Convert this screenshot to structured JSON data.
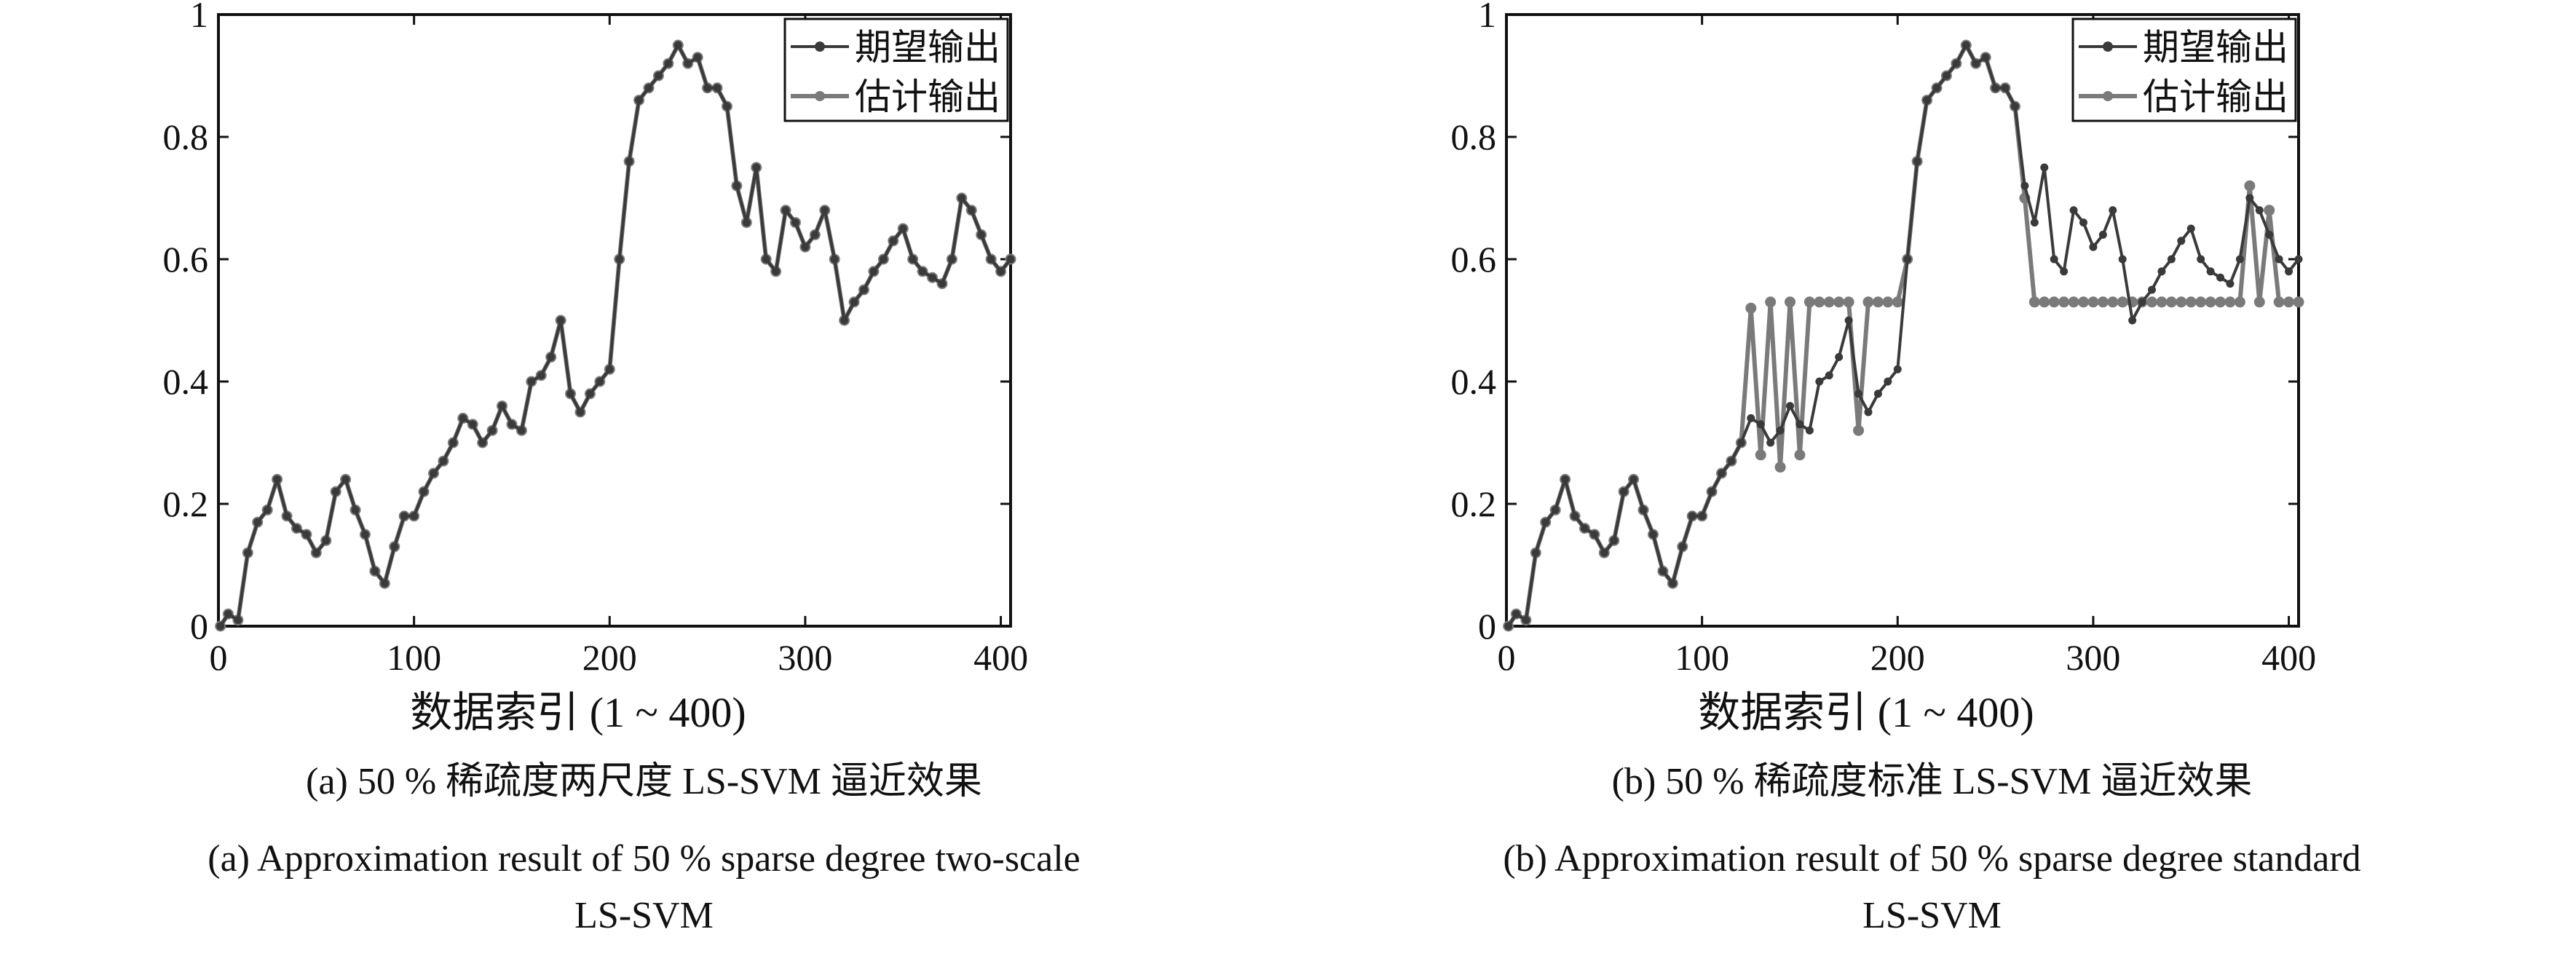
{
  "colors": {
    "desired": "#3a3a3a",
    "estimated": "#7a7a7a",
    "axis": "#111111"
  },
  "chart_data": [
    {
      "type": "line",
      "xlabel": "数据索引 (1 ~ 400)",
      "ylabel": "",
      "xlim": [
        0,
        405
      ],
      "ylim": [
        0,
        1
      ],
      "xticks": [
        0,
        100,
        200,
        300,
        400
      ],
      "yticks": [
        0,
        0.2,
        0.4,
        0.6,
        0.8,
        1
      ],
      "xtick_labels": [
        "0",
        "100",
        "200",
        "300",
        "400"
      ],
      "ytick_labels": [
        "0",
        "0.2",
        "0.4",
        "0.6",
        "0.8",
        "1"
      ],
      "grid": false,
      "legend_position": "top-right",
      "caption_cn": "(a) 50 % 稀疏度两尺度  LS-SVM 逼近效果",
      "caption_en_line1": "(a) Approximation result of 50 % sparse degree two-scale",
      "caption_en_line2": "LS-SVM",
      "x": [
        1,
        5,
        10,
        15,
        20,
        25,
        30,
        35,
        40,
        45,
        50,
        55,
        60,
        65,
        70,
        75,
        80,
        85,
        90,
        95,
        100,
        105,
        110,
        115,
        120,
        125,
        130,
        135,
        140,
        145,
        150,
        155,
        160,
        165,
        170,
        175,
        180,
        185,
        190,
        195,
        200,
        205,
        210,
        215,
        220,
        225,
        230,
        235,
        240,
        245,
        250,
        255,
        260,
        265,
        270,
        275,
        280,
        285,
        290,
        295,
        300,
        305,
        310,
        315,
        320,
        325,
        330,
        335,
        340,
        345,
        350,
        355,
        360,
        365,
        370,
        375,
        380,
        385,
        390,
        395,
        400,
        405
      ],
      "series": [
        {
          "name": "期望输出",
          "values": [
            0.0,
            0.02,
            0.01,
            0.12,
            0.17,
            0.19,
            0.24,
            0.18,
            0.16,
            0.15,
            0.12,
            0.14,
            0.22,
            0.24,
            0.19,
            0.15,
            0.09,
            0.07,
            0.13,
            0.18,
            0.18,
            0.22,
            0.25,
            0.27,
            0.3,
            0.34,
            0.33,
            0.3,
            0.32,
            0.36,
            0.33,
            0.32,
            0.4,
            0.41,
            0.44,
            0.5,
            0.38,
            0.35,
            0.38,
            0.4,
            0.42,
            0.6,
            0.76,
            0.86,
            0.88,
            0.9,
            0.92,
            0.95,
            0.92,
            0.93,
            0.88,
            0.88,
            0.85,
            0.72,
            0.66,
            0.75,
            0.6,
            0.58,
            0.68,
            0.66,
            0.62,
            0.64,
            0.68,
            0.6,
            0.5,
            0.53,
            0.55,
            0.58,
            0.6,
            0.63,
            0.65,
            0.6,
            0.58,
            0.57,
            0.56,
            0.6,
            0.7,
            0.68,
            0.64,
            0.6,
            0.58,
            0.6
          ]
        },
        {
          "name": "估计输出",
          "values": [
            0.0,
            0.02,
            0.01,
            0.12,
            0.17,
            0.19,
            0.24,
            0.18,
            0.16,
            0.15,
            0.12,
            0.14,
            0.22,
            0.24,
            0.19,
            0.15,
            0.09,
            0.07,
            0.13,
            0.18,
            0.18,
            0.22,
            0.25,
            0.27,
            0.3,
            0.34,
            0.33,
            0.3,
            0.32,
            0.36,
            0.33,
            0.32,
            0.4,
            0.41,
            0.44,
            0.5,
            0.38,
            0.35,
            0.38,
            0.4,
            0.42,
            0.6,
            0.76,
            0.86,
            0.88,
            0.9,
            0.92,
            0.95,
            0.92,
            0.93,
            0.88,
            0.88,
            0.85,
            0.72,
            0.66,
            0.75,
            0.6,
            0.58,
            0.68,
            0.66,
            0.62,
            0.64,
            0.68,
            0.6,
            0.5,
            0.53,
            0.55,
            0.58,
            0.6,
            0.63,
            0.65,
            0.6,
            0.58,
            0.57,
            0.56,
            0.6,
            0.7,
            0.68,
            0.64,
            0.6,
            0.58,
            0.6
          ]
        }
      ]
    },
    {
      "type": "line",
      "xlabel": "数据索引 (1 ~ 400)",
      "ylabel": "",
      "xlim": [
        0,
        405
      ],
      "ylim": [
        0,
        1
      ],
      "xticks": [
        0,
        100,
        200,
        300,
        400
      ],
      "yticks": [
        0,
        0.2,
        0.4,
        0.6,
        0.8,
        1
      ],
      "xtick_labels": [
        "0",
        "100",
        "200",
        "300",
        "400"
      ],
      "ytick_labels": [
        "0",
        "0.2",
        "0.4",
        "0.6",
        "0.8",
        "1"
      ],
      "grid": false,
      "legend_position": "top-right",
      "caption_cn": "(b) 50 % 稀疏度标准  LS-SVM 逼近效果",
      "caption_en_line1": "(b) Approximation result of 50 % sparse degree standard",
      "caption_en_line2": "LS-SVM",
      "x": [
        1,
        5,
        10,
        15,
        20,
        25,
        30,
        35,
        40,
        45,
        50,
        55,
        60,
        65,
        70,
        75,
        80,
        85,
        90,
        95,
        100,
        105,
        110,
        115,
        120,
        125,
        130,
        135,
        140,
        145,
        150,
        155,
        160,
        165,
        170,
        175,
        180,
        185,
        190,
        195,
        200,
        205,
        210,
        215,
        220,
        225,
        230,
        235,
        240,
        245,
        250,
        255,
        260,
        265,
        270,
        275,
        280,
        285,
        290,
        295,
        300,
        305,
        310,
        315,
        320,
        325,
        330,
        335,
        340,
        345,
        350,
        355,
        360,
        365,
        370,
        375,
        380,
        385,
        390,
        395,
        400,
        405
      ],
      "series": [
        {
          "name": "期望输出",
          "values": [
            0.0,
            0.02,
            0.01,
            0.12,
            0.17,
            0.19,
            0.24,
            0.18,
            0.16,
            0.15,
            0.12,
            0.14,
            0.22,
            0.24,
            0.19,
            0.15,
            0.09,
            0.07,
            0.13,
            0.18,
            0.18,
            0.22,
            0.25,
            0.27,
            0.3,
            0.34,
            0.33,
            0.3,
            0.32,
            0.36,
            0.33,
            0.32,
            0.4,
            0.41,
            0.44,
            0.5,
            0.38,
            0.35,
            0.38,
            0.4,
            0.42,
            0.6,
            0.76,
            0.86,
            0.88,
            0.9,
            0.92,
            0.95,
            0.92,
            0.93,
            0.88,
            0.88,
            0.85,
            0.72,
            0.66,
            0.75,
            0.6,
            0.58,
            0.68,
            0.66,
            0.62,
            0.64,
            0.68,
            0.6,
            0.5,
            0.53,
            0.55,
            0.58,
            0.6,
            0.63,
            0.65,
            0.6,
            0.58,
            0.57,
            0.56,
            0.6,
            0.7,
            0.68,
            0.64,
            0.6,
            0.58,
            0.6
          ]
        },
        {
          "name": "估计输出",
          "values": [
            0.0,
            0.02,
            0.01,
            0.12,
            0.17,
            0.19,
            0.24,
            0.18,
            0.16,
            0.15,
            0.12,
            0.14,
            0.22,
            0.24,
            0.19,
            0.15,
            0.09,
            0.07,
            0.13,
            0.18,
            0.18,
            0.22,
            0.25,
            0.27,
            0.3,
            0.52,
            0.28,
            0.53,
            0.26,
            0.53,
            0.28,
            0.53,
            0.53,
            0.53,
            0.53,
            0.53,
            0.32,
            0.53,
            0.53,
            0.53,
            0.53,
            0.6,
            0.76,
            0.86,
            0.88,
            0.9,
            0.92,
            0.95,
            0.92,
            0.93,
            0.88,
            0.88,
            0.85,
            0.7,
            0.53,
            0.53,
            0.53,
            0.53,
            0.53,
            0.53,
            0.53,
            0.53,
            0.53,
            0.53,
            0.53,
            0.53,
            0.53,
            0.53,
            0.53,
            0.53,
            0.53,
            0.53,
            0.53,
            0.53,
            0.53,
            0.53,
            0.72,
            0.53,
            0.68,
            0.53,
            0.53,
            0.53
          ]
        }
      ]
    }
  ]
}
